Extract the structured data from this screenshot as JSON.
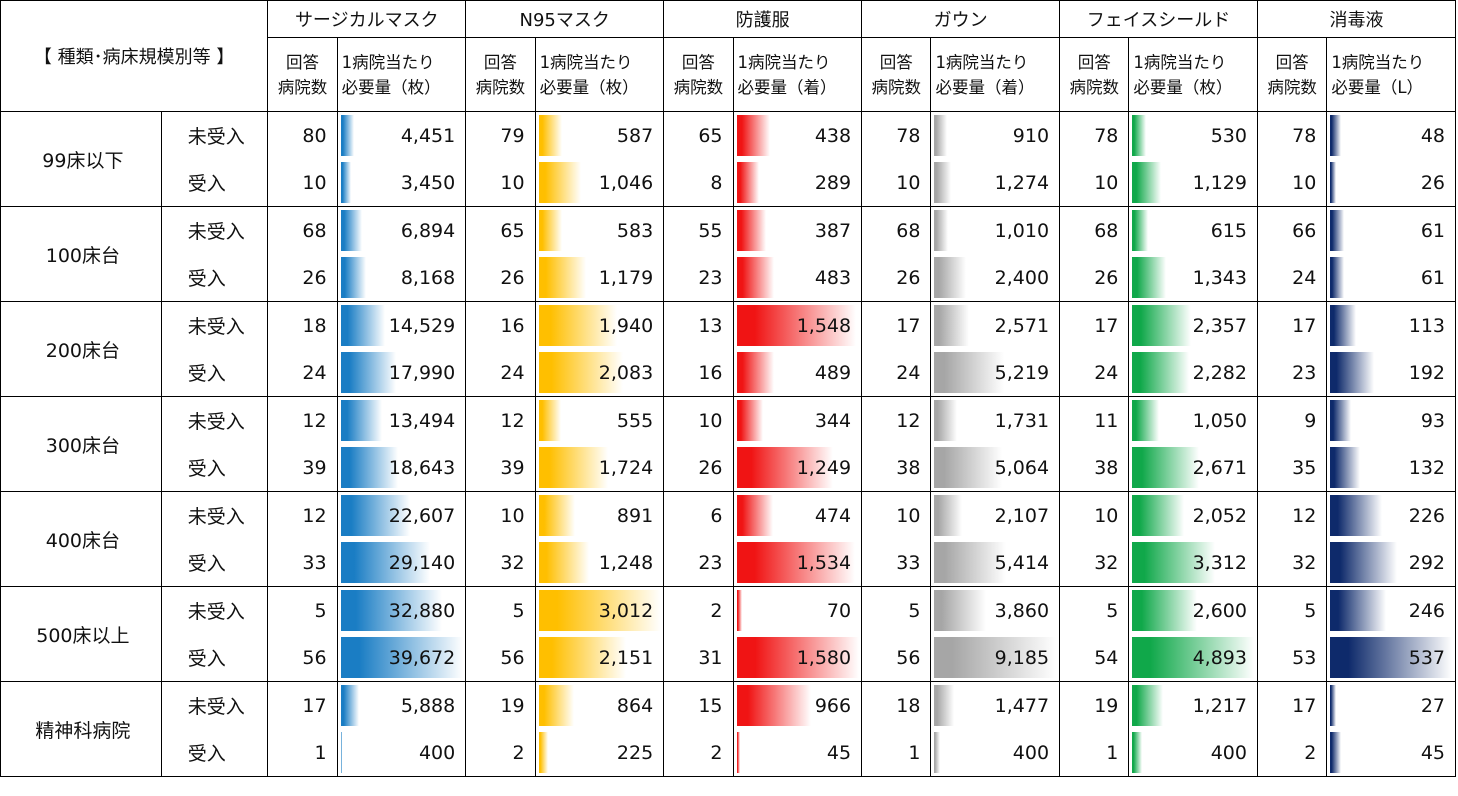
{
  "header": {
    "category_label": "【 種類･病床規模別等 】",
    "count_label_line1": "回答",
    "count_label_line2": "病院数",
    "req_label_line1": "1病院当たり"
  },
  "items": [
    {
      "name": "サージカルマスク",
      "unit_label": "必要量（枚）",
      "color": "#1a7dc4",
      "max": 39672
    },
    {
      "name": "N95マスク",
      "unit_label": "必要量（枚）",
      "color": "#ffbf00",
      "max": 3012
    },
    {
      "name": "防護服",
      "unit_label": "必要量（着）",
      "color": "#f01414",
      "max": 1580
    },
    {
      "name": "ガウン",
      "unit_label": "必要量（着）",
      "color": "#a6a6a6",
      "max": 9185
    },
    {
      "name": "フェイスシールド",
      "unit_label": "必要量（枚）",
      "color": "#10a84a",
      "max": 4893
    },
    {
      "name": "消毒液",
      "unit_label": "必要量（L）",
      "color": "#0e2a6b",
      "max": 537
    }
  ],
  "groups": [
    {
      "label": "99床以下",
      "rows": [
        {
          "status": "未受入",
          "cells": [
            [
              "80",
              "4,451",
              4451
            ],
            [
              "79",
              "587",
              587
            ],
            [
              "65",
              "438",
              438
            ],
            [
              "78",
              "910",
              910
            ],
            [
              "78",
              "530",
              530
            ],
            [
              "78",
              "48",
              48
            ]
          ]
        },
        {
          "status": "受入",
          "cells": [
            [
              "10",
              "3,450",
              3450
            ],
            [
              "10",
              "1,046",
              1046
            ],
            [
              "8",
              "289",
              289
            ],
            [
              "10",
              "1,274",
              1274
            ],
            [
              "10",
              "1,129",
              1129
            ],
            [
              "10",
              "26",
              26
            ]
          ]
        }
      ]
    },
    {
      "label": "100床台",
      "rows": [
        {
          "status": "未受入",
          "cells": [
            [
              "68",
              "6,894",
              6894
            ],
            [
              "65",
              "583",
              583
            ],
            [
              "55",
              "387",
              387
            ],
            [
              "68",
              "1,010",
              1010
            ],
            [
              "68",
              "615",
              615
            ],
            [
              "66",
              "61",
              61
            ]
          ]
        },
        {
          "status": "受入",
          "cells": [
            [
              "26",
              "8,168",
              8168
            ],
            [
              "26",
              "1,179",
              1179
            ],
            [
              "23",
              "483",
              483
            ],
            [
              "26",
              "2,400",
              2400
            ],
            [
              "26",
              "1,343",
              1343
            ],
            [
              "24",
              "61",
              61
            ]
          ]
        }
      ]
    },
    {
      "label": "200床台",
      "rows": [
        {
          "status": "未受入",
          "cells": [
            [
              "18",
              "14,529",
              14529
            ],
            [
              "16",
              "1,940",
              1940
            ],
            [
              "13",
              "1,548",
              1548
            ],
            [
              "17",
              "2,571",
              2571
            ],
            [
              "17",
              "2,357",
              2357
            ],
            [
              "17",
              "113",
              113
            ]
          ]
        },
        {
          "status": "受入",
          "cells": [
            [
              "24",
              "17,990",
              17990
            ],
            [
              "24",
              "2,083",
              2083
            ],
            [
              "16",
              "489",
              489
            ],
            [
              "24",
              "5,219",
              5219
            ],
            [
              "24",
              "2,282",
              2282
            ],
            [
              "23",
              "192",
              192
            ]
          ]
        }
      ]
    },
    {
      "label": "300床台",
      "rows": [
        {
          "status": "未受入",
          "cells": [
            [
              "12",
              "13,494",
              13494
            ],
            [
              "12",
              "555",
              555
            ],
            [
              "10",
              "344",
              344
            ],
            [
              "12",
              "1,731",
              1731
            ],
            [
              "11",
              "1,050",
              1050
            ],
            [
              "9",
              "93",
              93
            ]
          ]
        },
        {
          "status": "受入",
          "cells": [
            [
              "39",
              "18,643",
              18643
            ],
            [
              "39",
              "1,724",
              1724
            ],
            [
              "26",
              "1,249",
              1249
            ],
            [
              "38",
              "5,064",
              5064
            ],
            [
              "38",
              "2,671",
              2671
            ],
            [
              "35",
              "132",
              132
            ]
          ]
        }
      ]
    },
    {
      "label": "400床台",
      "rows": [
        {
          "status": "未受入",
          "cells": [
            [
              "12",
              "22,607",
              22607
            ],
            [
              "10",
              "891",
              891
            ],
            [
              "6",
              "474",
              474
            ],
            [
              "10",
              "2,107",
              2107
            ],
            [
              "10",
              "2,052",
              2052
            ],
            [
              "12",
              "226",
              226
            ]
          ]
        },
        {
          "status": "受入",
          "cells": [
            [
              "33",
              "29,140",
              29140
            ],
            [
              "32",
              "1,248",
              1248
            ],
            [
              "23",
              "1,534",
              1534
            ],
            [
              "33",
              "5,414",
              5414
            ],
            [
              "32",
              "3,312",
              3312
            ],
            [
              "32",
              "292",
              292
            ]
          ]
        }
      ]
    },
    {
      "label": "500床以上",
      "rows": [
        {
          "status": "未受入",
          "cells": [
            [
              "5",
              "32,880",
              32880
            ],
            [
              "5",
              "3,012",
              3012
            ],
            [
              "2",
              "70",
              70
            ],
            [
              "5",
              "3,860",
              3860
            ],
            [
              "5",
              "2,600",
              2600
            ],
            [
              "5",
              "246",
              246
            ]
          ]
        },
        {
          "status": "受入",
          "cells": [
            [
              "56",
              "39,672",
              39672
            ],
            [
              "56",
              "2,151",
              2151
            ],
            [
              "31",
              "1,580",
              1580
            ],
            [
              "56",
              "9,185",
              9185
            ],
            [
              "54",
              "4,893",
              4893
            ],
            [
              "53",
              "537",
              537
            ]
          ]
        }
      ]
    },
    {
      "label": "精神科病院",
      "rows": [
        {
          "status": "未受入",
          "cells": [
            [
              "17",
              "5,888",
              5888
            ],
            [
              "19",
              "864",
              864
            ],
            [
              "15",
              "966",
              966
            ],
            [
              "18",
              "1,477",
              1477
            ],
            [
              "19",
              "1,217",
              1217
            ],
            [
              "17",
              "27",
              27
            ]
          ]
        },
        {
          "status": "受入",
          "cells": [
            [
              "1",
              "400",
              400
            ],
            [
              "2",
              "225",
              225
            ],
            [
              "2",
              "45",
              45
            ],
            [
              "1",
              "400",
              400
            ],
            [
              "1",
              "400",
              400
            ],
            [
              "2",
              "45",
              45
            ]
          ]
        }
      ]
    }
  ]
}
